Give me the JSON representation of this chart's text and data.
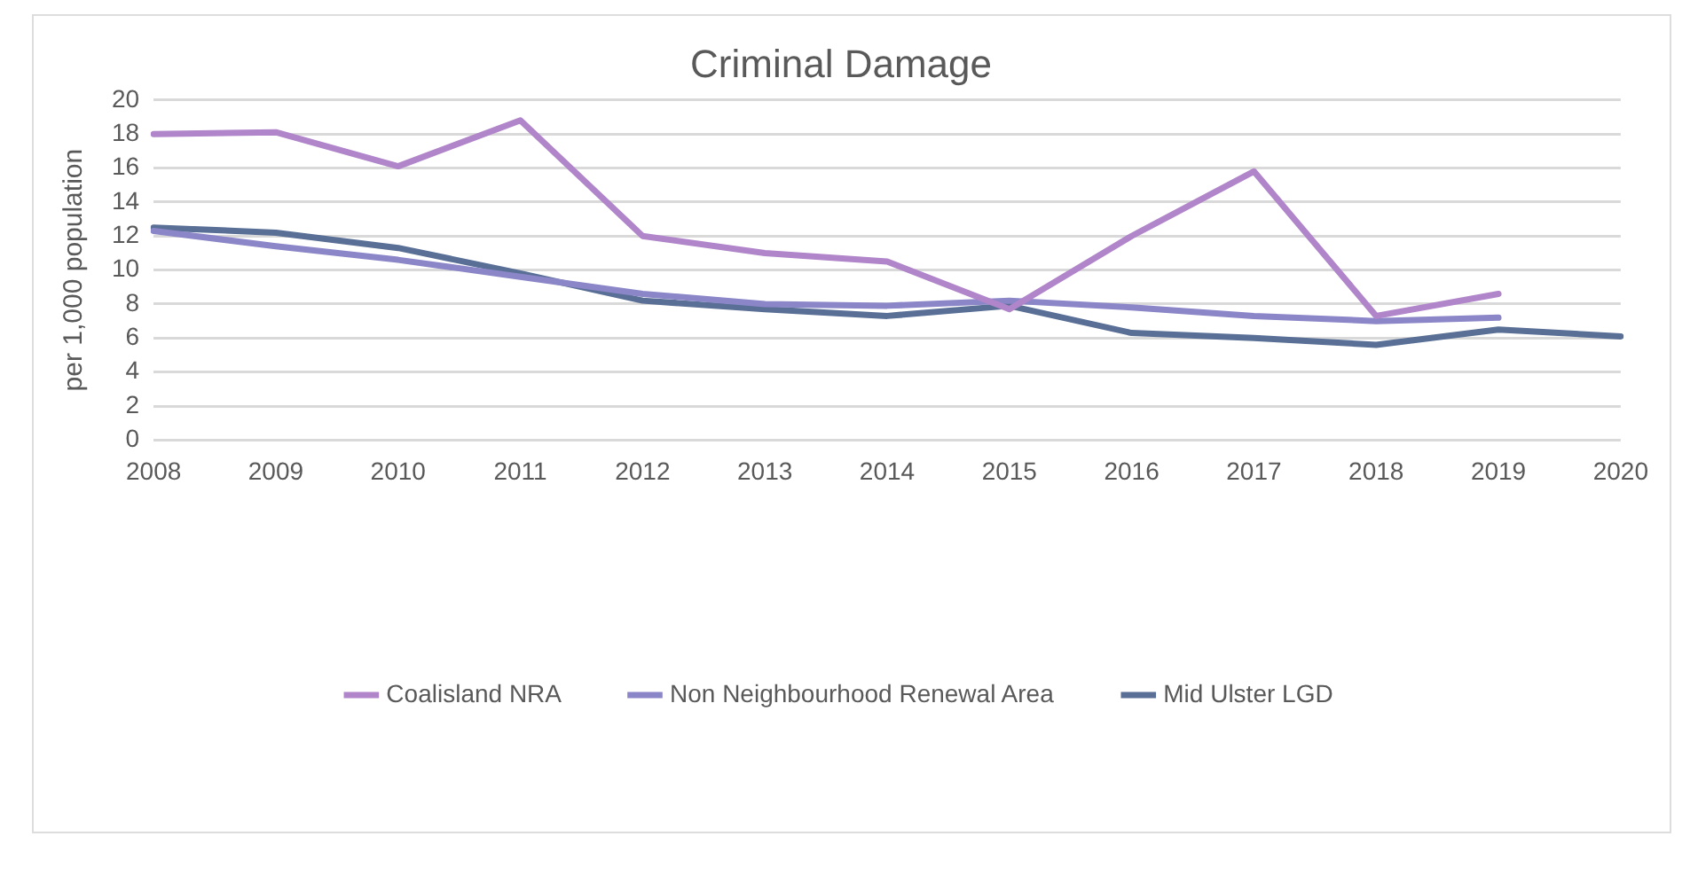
{
  "chart_data": {
    "type": "line",
    "title": "Criminal Damage",
    "ylabel": "per 1,000 population",
    "categories": [
      "2008",
      "2009",
      "2010",
      "2011",
      "2012",
      "2013",
      "2014",
      "2015",
      "2016",
      "2017",
      "2018",
      "2019",
      "2020"
    ],
    "series": [
      {
        "name": "Coalisland NRA",
        "color": "#b085c9",
        "values": [
          18,
          18.1,
          16.1,
          18.8,
          12,
          11,
          10.5,
          7.7,
          12,
          15.8,
          7.3,
          8.6,
          null
        ]
      },
      {
        "name": "Non Neighbourhood Renewal Area",
        "color": "#8b86c8",
        "values": [
          12.3,
          11.4,
          10.6,
          9.6,
          8.6,
          8,
          7.9,
          8.2,
          7.8,
          7.3,
          7,
          7.2,
          null
        ]
      },
      {
        "name": "Mid Ulster LGD",
        "color": "#5a6f96",
        "values": [
          12.5,
          12.2,
          11.3,
          9.8,
          8.2,
          7.7,
          7.3,
          7.9,
          6.3,
          6,
          5.6,
          6.5,
          6.1
        ]
      }
    ],
    "ylim": [
      0,
      20
    ],
    "yticks": [
      0,
      2,
      4,
      6,
      8,
      10,
      12,
      14,
      16,
      18,
      20
    ],
    "grid": "y",
    "legend": "bottom",
    "marker": "none",
    "line_style": "solid"
  }
}
